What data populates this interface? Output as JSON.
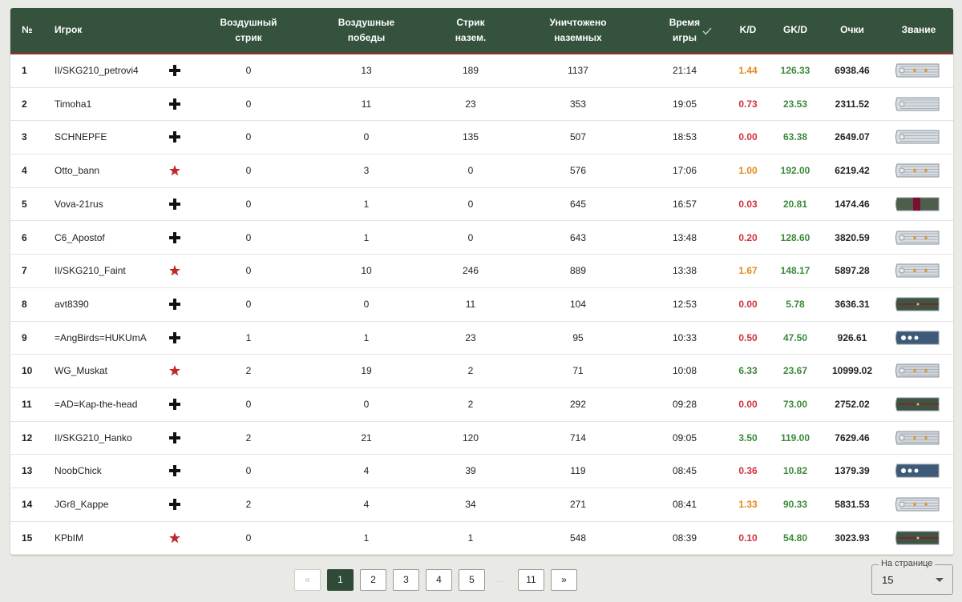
{
  "table": {
    "header": [
      [
        "№"
      ],
      [
        "Игрок"
      ],
      [
        "Воздушный",
        "стрик"
      ],
      [
        "Воздушные",
        "победы"
      ],
      [
        "Стрик",
        "назем."
      ],
      [
        "Уничтожено",
        "наземных"
      ],
      [
        "Время",
        "игры"
      ],
      [
        "K/D"
      ],
      [
        "GK/D"
      ],
      [
        "Очки"
      ],
      [
        "Звание"
      ]
    ],
    "rows": [
      [
        "1",
        "II/SKG210_petrovi4",
        "0",
        "13",
        "189",
        "1137",
        "21:14",
        "1.44",
        "126.33",
        "6938.46"
      ],
      [
        "2",
        "Timoha1",
        "0",
        "11",
        "23",
        "353",
        "19:05",
        "0.73",
        "23.53",
        "2311.52"
      ],
      [
        "3",
        "SCHNEPFE",
        "0",
        "0",
        "135",
        "507",
        "18:53",
        "0.00",
        "63.38",
        "2649.07"
      ],
      [
        "4",
        "Otto_bann",
        "0",
        "3",
        "0",
        "576",
        "17:06",
        "1.00",
        "192.00",
        "6219.42"
      ],
      [
        "5",
        "Vova-21rus",
        "0",
        "1",
        "0",
        "645",
        "16:57",
        "0.03",
        "20.81",
        "1474.46"
      ],
      [
        "6",
        "C6_Apostof",
        "0",
        "1",
        "0",
        "643",
        "13:48",
        "0.20",
        "128.60",
        "3820.59"
      ],
      [
        "7",
        "II/SKG210_Faint",
        "0",
        "10",
        "246",
        "889",
        "13:38",
        "1.67",
        "148.17",
        "5897.28"
      ],
      [
        "8",
        "avt8390",
        "0",
        "0",
        "11",
        "104",
        "12:53",
        "0.00",
        "5.78",
        "3636.31"
      ],
      [
        "9",
        "=AngBirds=HUKUmA",
        "1",
        "1",
        "23",
        "95",
        "10:33",
        "0.50",
        "47.50",
        "926.61"
      ],
      [
        "10",
        "WG_Muskat",
        "2",
        "19",
        "2",
        "71",
        "10:08",
        "6.33",
        "23.67",
        "10999.02"
      ],
      [
        "11",
        "=AD=Kap-the-head",
        "0",
        "0",
        "2",
        "292",
        "09:28",
        "0.00",
        "73.00",
        "2752.02"
      ],
      [
        "12",
        "II/SKG210_Hanko",
        "2",
        "21",
        "120",
        "714",
        "09:05",
        "3.50",
        "119.00",
        "7629.46"
      ],
      [
        "13",
        "NoobChick",
        "0",
        "4",
        "39",
        "119",
        "08:45",
        "0.36",
        "10.82",
        "1379.39"
      ],
      [
        "14",
        "JGr8_Kappe",
        "2",
        "4",
        "34",
        "271",
        "08:41",
        "1.33",
        "90.33",
        "5831.53"
      ],
      [
        "15",
        "KPbIM",
        "0",
        "1",
        "1",
        "548",
        "08:39",
        "0.10",
        "54.80",
        "3023.93"
      ]
    ]
  },
  "pagination": {
    "pages": [
      "«",
      "1",
      "2",
      "3",
      "4",
      "5",
      "...",
      "11",
      "»"
    ],
    "page_size_label": "На странице",
    "page_size": "15"
  }
}
